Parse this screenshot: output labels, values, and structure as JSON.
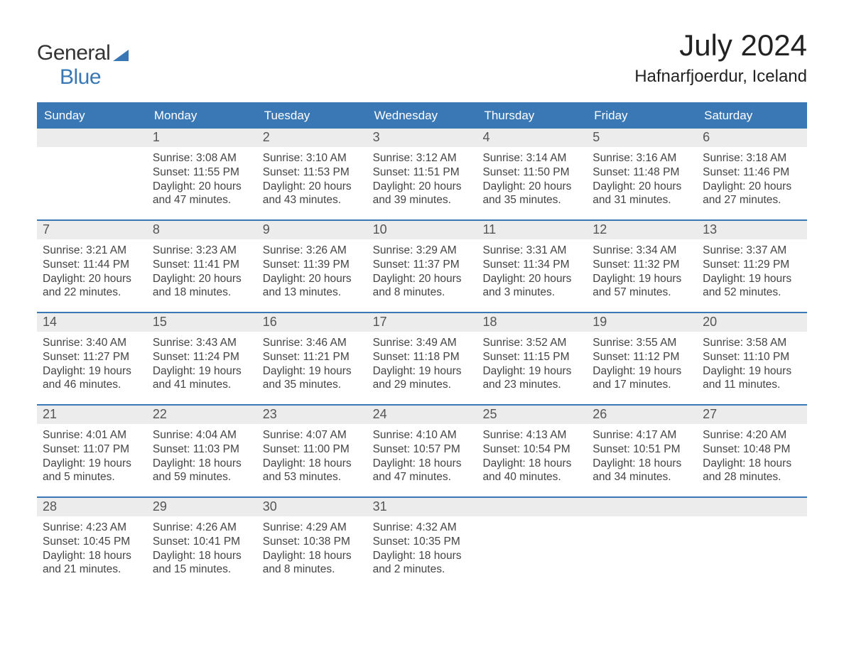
{
  "logo": {
    "text_general": "General",
    "text_blue": "Blue"
  },
  "title": "July 2024",
  "location": "Hafnarfjoerdur, Iceland",
  "colors": {
    "brand": "#3a78b5",
    "header_bg": "#3a78b5",
    "header_text": "#ffffff",
    "daynum_bg": "#ececec",
    "body_text": "#444444",
    "bg": "#ffffff"
  },
  "day_headers": [
    "Sunday",
    "Monday",
    "Tuesday",
    "Wednesday",
    "Thursday",
    "Friday",
    "Saturday"
  ],
  "weeks": [
    [
      {
        "day": "",
        "sunrise": "",
        "sunset": "",
        "daylight1": "",
        "daylight2": ""
      },
      {
        "day": "1",
        "sunrise": "Sunrise: 3:08 AM",
        "sunset": "Sunset: 11:55 PM",
        "daylight1": "Daylight: 20 hours",
        "daylight2": "and 47 minutes."
      },
      {
        "day": "2",
        "sunrise": "Sunrise: 3:10 AM",
        "sunset": "Sunset: 11:53 PM",
        "daylight1": "Daylight: 20 hours",
        "daylight2": "and 43 minutes."
      },
      {
        "day": "3",
        "sunrise": "Sunrise: 3:12 AM",
        "sunset": "Sunset: 11:51 PM",
        "daylight1": "Daylight: 20 hours",
        "daylight2": "and 39 minutes."
      },
      {
        "day": "4",
        "sunrise": "Sunrise: 3:14 AM",
        "sunset": "Sunset: 11:50 PM",
        "daylight1": "Daylight: 20 hours",
        "daylight2": "and 35 minutes."
      },
      {
        "day": "5",
        "sunrise": "Sunrise: 3:16 AM",
        "sunset": "Sunset: 11:48 PM",
        "daylight1": "Daylight: 20 hours",
        "daylight2": "and 31 minutes."
      },
      {
        "day": "6",
        "sunrise": "Sunrise: 3:18 AM",
        "sunset": "Sunset: 11:46 PM",
        "daylight1": "Daylight: 20 hours",
        "daylight2": "and 27 minutes."
      }
    ],
    [
      {
        "day": "7",
        "sunrise": "Sunrise: 3:21 AM",
        "sunset": "Sunset: 11:44 PM",
        "daylight1": "Daylight: 20 hours",
        "daylight2": "and 22 minutes."
      },
      {
        "day": "8",
        "sunrise": "Sunrise: 3:23 AM",
        "sunset": "Sunset: 11:41 PM",
        "daylight1": "Daylight: 20 hours",
        "daylight2": "and 18 minutes."
      },
      {
        "day": "9",
        "sunrise": "Sunrise: 3:26 AM",
        "sunset": "Sunset: 11:39 PM",
        "daylight1": "Daylight: 20 hours",
        "daylight2": "and 13 minutes."
      },
      {
        "day": "10",
        "sunrise": "Sunrise: 3:29 AM",
        "sunset": "Sunset: 11:37 PM",
        "daylight1": "Daylight: 20 hours",
        "daylight2": "and 8 minutes."
      },
      {
        "day": "11",
        "sunrise": "Sunrise: 3:31 AM",
        "sunset": "Sunset: 11:34 PM",
        "daylight1": "Daylight: 20 hours",
        "daylight2": "and 3 minutes."
      },
      {
        "day": "12",
        "sunrise": "Sunrise: 3:34 AM",
        "sunset": "Sunset: 11:32 PM",
        "daylight1": "Daylight: 19 hours",
        "daylight2": "and 57 minutes."
      },
      {
        "day": "13",
        "sunrise": "Sunrise: 3:37 AM",
        "sunset": "Sunset: 11:29 PM",
        "daylight1": "Daylight: 19 hours",
        "daylight2": "and 52 minutes."
      }
    ],
    [
      {
        "day": "14",
        "sunrise": "Sunrise: 3:40 AM",
        "sunset": "Sunset: 11:27 PM",
        "daylight1": "Daylight: 19 hours",
        "daylight2": "and 46 minutes."
      },
      {
        "day": "15",
        "sunrise": "Sunrise: 3:43 AM",
        "sunset": "Sunset: 11:24 PM",
        "daylight1": "Daylight: 19 hours",
        "daylight2": "and 41 minutes."
      },
      {
        "day": "16",
        "sunrise": "Sunrise: 3:46 AM",
        "sunset": "Sunset: 11:21 PM",
        "daylight1": "Daylight: 19 hours",
        "daylight2": "and 35 minutes."
      },
      {
        "day": "17",
        "sunrise": "Sunrise: 3:49 AM",
        "sunset": "Sunset: 11:18 PM",
        "daylight1": "Daylight: 19 hours",
        "daylight2": "and 29 minutes."
      },
      {
        "day": "18",
        "sunrise": "Sunrise: 3:52 AM",
        "sunset": "Sunset: 11:15 PM",
        "daylight1": "Daylight: 19 hours",
        "daylight2": "and 23 minutes."
      },
      {
        "day": "19",
        "sunrise": "Sunrise: 3:55 AM",
        "sunset": "Sunset: 11:12 PM",
        "daylight1": "Daylight: 19 hours",
        "daylight2": "and 17 minutes."
      },
      {
        "day": "20",
        "sunrise": "Sunrise: 3:58 AM",
        "sunset": "Sunset: 11:10 PM",
        "daylight1": "Daylight: 19 hours",
        "daylight2": "and 11 minutes."
      }
    ],
    [
      {
        "day": "21",
        "sunrise": "Sunrise: 4:01 AM",
        "sunset": "Sunset: 11:07 PM",
        "daylight1": "Daylight: 19 hours",
        "daylight2": "and 5 minutes."
      },
      {
        "day": "22",
        "sunrise": "Sunrise: 4:04 AM",
        "sunset": "Sunset: 11:03 PM",
        "daylight1": "Daylight: 18 hours",
        "daylight2": "and 59 minutes."
      },
      {
        "day": "23",
        "sunrise": "Sunrise: 4:07 AM",
        "sunset": "Sunset: 11:00 PM",
        "daylight1": "Daylight: 18 hours",
        "daylight2": "and 53 minutes."
      },
      {
        "day": "24",
        "sunrise": "Sunrise: 4:10 AM",
        "sunset": "Sunset: 10:57 PM",
        "daylight1": "Daylight: 18 hours",
        "daylight2": "and 47 minutes."
      },
      {
        "day": "25",
        "sunrise": "Sunrise: 4:13 AM",
        "sunset": "Sunset: 10:54 PM",
        "daylight1": "Daylight: 18 hours",
        "daylight2": "and 40 minutes."
      },
      {
        "day": "26",
        "sunrise": "Sunrise: 4:17 AM",
        "sunset": "Sunset: 10:51 PM",
        "daylight1": "Daylight: 18 hours",
        "daylight2": "and 34 minutes."
      },
      {
        "day": "27",
        "sunrise": "Sunrise: 4:20 AM",
        "sunset": "Sunset: 10:48 PM",
        "daylight1": "Daylight: 18 hours",
        "daylight2": "and 28 minutes."
      }
    ],
    [
      {
        "day": "28",
        "sunrise": "Sunrise: 4:23 AM",
        "sunset": "Sunset: 10:45 PM",
        "daylight1": "Daylight: 18 hours",
        "daylight2": "and 21 minutes."
      },
      {
        "day": "29",
        "sunrise": "Sunrise: 4:26 AM",
        "sunset": "Sunset: 10:41 PM",
        "daylight1": "Daylight: 18 hours",
        "daylight2": "and 15 minutes."
      },
      {
        "day": "30",
        "sunrise": "Sunrise: 4:29 AM",
        "sunset": "Sunset: 10:38 PM",
        "daylight1": "Daylight: 18 hours",
        "daylight2": "and 8 minutes."
      },
      {
        "day": "31",
        "sunrise": "Sunrise: 4:32 AM",
        "sunset": "Sunset: 10:35 PM",
        "daylight1": "Daylight: 18 hours",
        "daylight2": "and 2 minutes."
      },
      {
        "day": "",
        "sunrise": "",
        "sunset": "",
        "daylight1": "",
        "daylight2": ""
      },
      {
        "day": "",
        "sunrise": "",
        "sunset": "",
        "daylight1": "",
        "daylight2": ""
      },
      {
        "day": "",
        "sunrise": "",
        "sunset": "",
        "daylight1": "",
        "daylight2": ""
      }
    ]
  ]
}
